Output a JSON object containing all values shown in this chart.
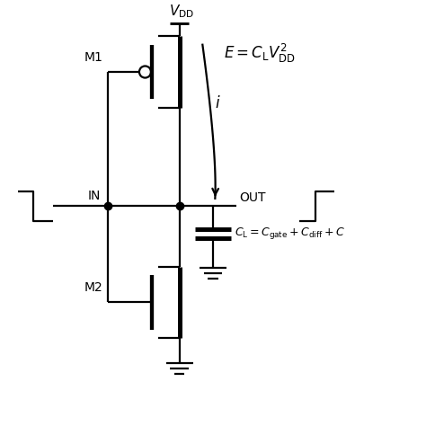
{
  "bg_color": "#ffffff",
  "line_color": "#000000",
  "line_width": 1.6,
  "fig_width": 4.74,
  "fig_height": 4.74,
  "dpi": 100,
  "xlim": [
    0,
    10
  ],
  "ylim": [
    0,
    10
  ]
}
